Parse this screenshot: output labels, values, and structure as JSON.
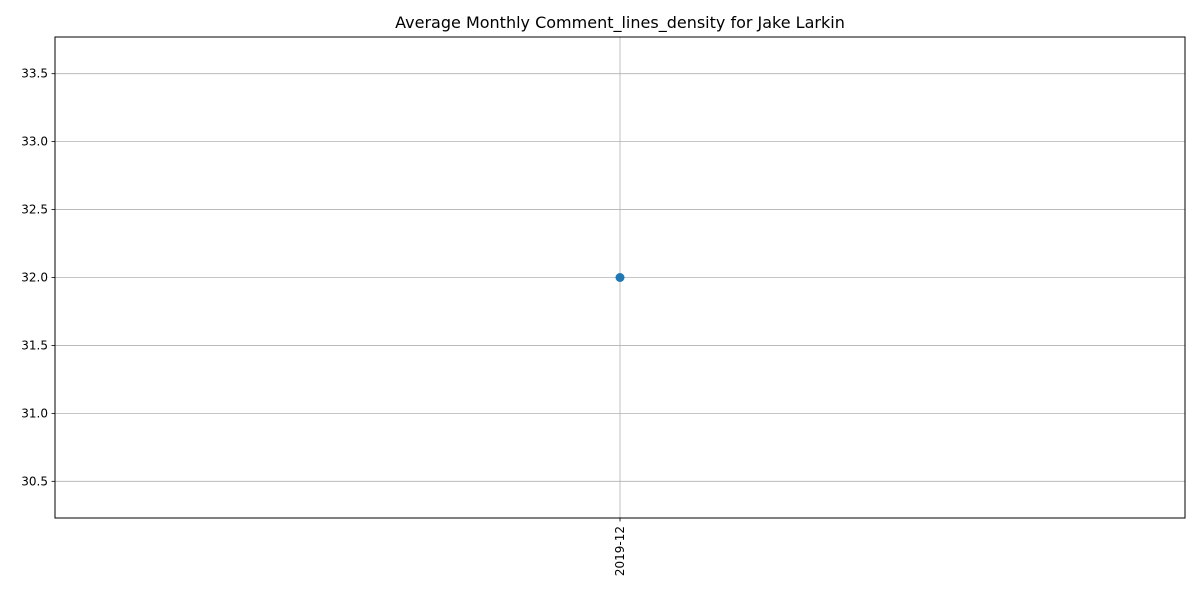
{
  "chart_data": {
    "type": "line",
    "title": "Average Monthly Comment_lines_density for Jake Larkin",
    "xlabel": "",
    "ylabel": "",
    "categories": [
      "2019-12"
    ],
    "series": [
      {
        "values": [
          32.0
        ],
        "color": "#1f77b4",
        "marker": "circle"
      }
    ],
    "ylim": [
      30.23,
      33.77
    ],
    "yticks": [
      "30.5",
      "31.0",
      "31.5",
      "32.0",
      "32.5",
      "33.0",
      "33.5"
    ],
    "grid": true,
    "legend": "none"
  }
}
